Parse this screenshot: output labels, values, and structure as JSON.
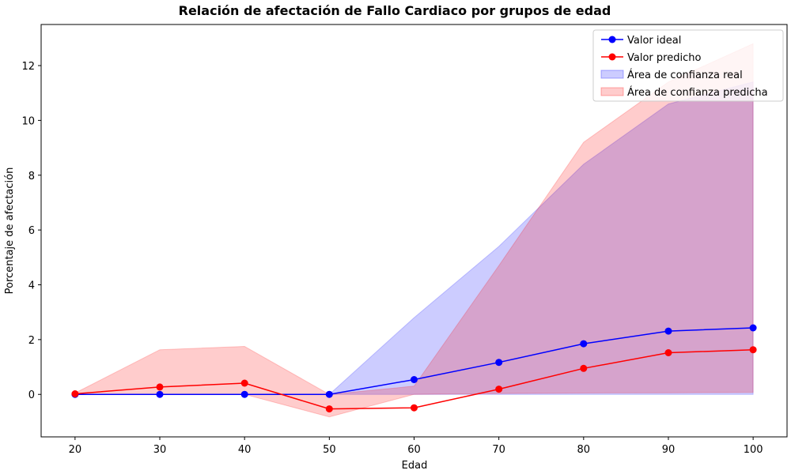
{
  "chart_data": {
    "type": "line",
    "title": "Relación de afectación de Fallo Cardiaco por grupos de edad",
    "xlabel": "Edad",
    "ylabel": "Porcentaje de afectación",
    "x": [
      20,
      30,
      40,
      50,
      60,
      70,
      80,
      90,
      100
    ],
    "xticks": [
      "20",
      "30",
      "40",
      "50",
      "60",
      "70",
      "80",
      "90",
      "100"
    ],
    "xlim": [
      16,
      104
    ],
    "yticks": [
      "0",
      "2",
      "4",
      "6",
      "8",
      "10",
      "12"
    ],
    "ylim": [
      -1.55,
      13.5
    ],
    "grid": false,
    "legend_position": "top-right",
    "series": [
      {
        "name": "Valor ideal",
        "color": "#0000ff",
        "values": [
          0.0,
          0.0,
          0.0,
          0.0,
          0.54,
          1.17,
          1.85,
          2.31,
          2.43
        ]
      },
      {
        "name": "Valor predicho",
        "color": "#ff0000",
        "values": [
          0.02,
          0.27,
          0.41,
          -0.53,
          -0.49,
          0.19,
          0.95,
          1.52,
          1.63
        ]
      }
    ],
    "bands": [
      {
        "name": "Área de confianza real",
        "color": "#0000ff",
        "lower": [
          0.0,
          0.0,
          0.0,
          0.0,
          0.0,
          0.0,
          0.0,
          0.0,
          0.0
        ],
        "upper": [
          0.0,
          0.0,
          0.0,
          0.0,
          2.8,
          5.4,
          8.4,
          10.6,
          11.4
        ]
      },
      {
        "name": "Área de confianza predicha",
        "color": "#ff0000",
        "lower": [
          0.0,
          0.0,
          0.0,
          -0.82,
          0.0,
          0.03,
          0.05,
          0.06,
          0.07
        ],
        "upper": [
          0.05,
          1.63,
          1.75,
          0.0,
          0.3,
          4.7,
          9.2,
          11.4,
          12.8
        ]
      }
    ]
  }
}
